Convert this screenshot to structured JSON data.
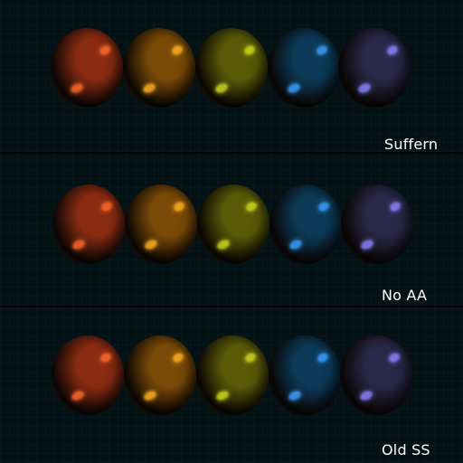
{
  "panels": [
    {
      "label": "Suffern",
      "spheres": [
        {
          "name": "red",
          "color": "#8a2c12",
          "highlight": "#ff6a2a"
        },
        {
          "name": "orange",
          "color": "#7a4a08",
          "highlight": "#ffb020"
        },
        {
          "name": "yellow-green",
          "color": "#5a5a08",
          "highlight": "#d0d820"
        },
        {
          "name": "blue",
          "color": "#0c3a58",
          "highlight": "#3aa0ff"
        },
        {
          "name": "purple",
          "color": "#2a2848",
          "highlight": "#8a84ff"
        }
      ]
    },
    {
      "label": "No AA",
      "spheres": [
        {
          "name": "red",
          "color": "#8a2c12",
          "highlight": "#ff6a2a"
        },
        {
          "name": "orange",
          "color": "#7a4a08",
          "highlight": "#ffb020"
        },
        {
          "name": "yellow-green",
          "color": "#5a5a08",
          "highlight": "#d0d820"
        },
        {
          "name": "blue",
          "color": "#0c3a58",
          "highlight": "#3aa0ff"
        },
        {
          "name": "purple",
          "color": "#2a2848",
          "highlight": "#8a84ff"
        }
      ]
    },
    {
      "label": "Old SS",
      "spheres": [
        {
          "name": "red",
          "color": "#8a2c12",
          "highlight": "#ff6a2a"
        },
        {
          "name": "orange",
          "color": "#7a4a08",
          "highlight": "#ffb020"
        },
        {
          "name": "yellow-green",
          "color": "#5a5a08",
          "highlight": "#d0d820"
        },
        {
          "name": "blue",
          "color": "#0c3a58",
          "highlight": "#3aa0ff"
        },
        {
          "name": "purple",
          "color": "#2a2848",
          "highlight": "#8a84ff"
        }
      ]
    }
  ]
}
